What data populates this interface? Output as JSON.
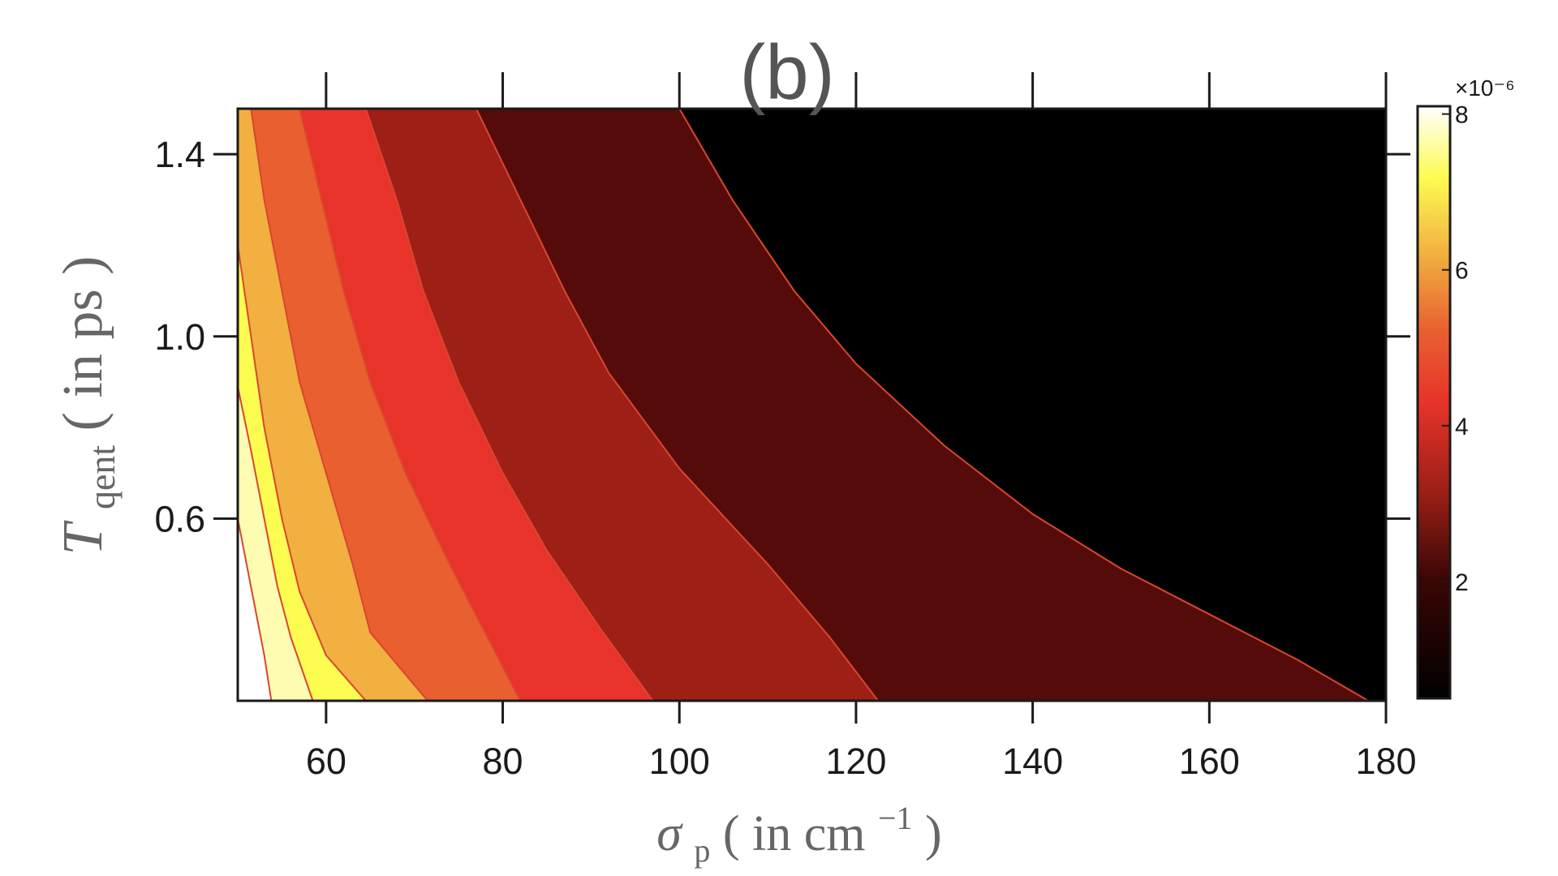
{
  "chart_data": {
    "type": "contour",
    "title": "(b)",
    "xlabel": {
      "symbol": "σ",
      "subscript": "p",
      "text": " ( in cm",
      "superscript": "−1",
      "close": " )"
    },
    "ylabel": {
      "symbol": "T",
      "subscript": "qent",
      "text": " ( in ps )"
    },
    "xlim": [
      50,
      180
    ],
    "ylim": [
      0.2,
      1.5
    ],
    "xticks": [
      60,
      80,
      100,
      120,
      140,
      160,
      180
    ],
    "xtick_labels": [
      "60",
      "80",
      "100",
      "120",
      "140",
      "160",
      "180"
    ],
    "yticks": [
      0.6,
      1.0,
      1.4
    ],
    "ytick_labels": [
      "0.6",
      "1.0",
      "1.4"
    ],
    "colorbar": {
      "range": [
        0.5,
        8.1
      ],
      "ticks": [
        2,
        4,
        6,
        8
      ],
      "tick_labels": [
        "2",
        "4",
        "6",
        "8"
      ],
      "exponent": "×10⁻⁶",
      "colormap": "hot"
    },
    "levels": [
      1,
      2,
      3,
      4,
      5,
      6,
      7
    ],
    "level_colors": [
      "#000000",
      "#550b09",
      "#9d1f16",
      "#e8332a",
      "#e95f30",
      "#f1b040",
      "#fdfc51",
      "#fefcb0"
    ],
    "contour_lines": [
      {
        "level": 1,
        "points": [
          [
            100,
            1.5
          ],
          [
            106,
            1.3
          ],
          [
            113,
            1.1
          ],
          [
            120,
            0.94
          ],
          [
            130,
            0.76
          ],
          [
            140,
            0.61
          ],
          [
            150,
            0.49
          ],
          [
            160,
            0.39
          ],
          [
            170,
            0.29
          ],
          [
            178,
            0.2
          ]
        ]
      },
      {
        "level": 2,
        "points": [
          [
            77,
            1.5
          ],
          [
            82,
            1.3
          ],
          [
            87,
            1.1
          ],
          [
            92,
            0.92
          ],
          [
            100,
            0.71
          ],
          [
            110,
            0.5
          ],
          [
            117,
            0.34
          ],
          [
            122.5,
            0.2
          ]
        ]
      },
      {
        "level": 3,
        "points": [
          [
            64.5,
            1.5
          ],
          [
            68,
            1.3
          ],
          [
            71,
            1.1
          ],
          [
            75,
            0.9
          ],
          [
            80,
            0.7
          ],
          [
            85,
            0.53
          ],
          [
            91,
            0.36
          ],
          [
            97,
            0.2
          ]
        ]
      },
      {
        "level": 4,
        "points": [
          [
            57,
            1.5
          ],
          [
            59.5,
            1.3
          ],
          [
            62,
            1.1
          ],
          [
            65,
            0.9
          ],
          [
            69,
            0.7
          ],
          [
            74,
            0.5
          ],
          [
            78,
            0.35
          ],
          [
            82,
            0.2
          ]
        ]
      },
      {
        "level": 5,
        "points": [
          [
            51.5,
            1.5
          ],
          [
            53,
            1.3
          ],
          [
            55,
            1.1
          ],
          [
            57,
            0.9
          ],
          [
            60,
            0.7
          ],
          [
            63,
            0.5
          ],
          [
            65,
            0.35
          ],
          [
            71.5,
            0.2
          ]
        ]
      },
      {
        "level": 6,
        "points": [
          [
            50,
            1.2
          ],
          [
            51.5,
            1.0
          ],
          [
            53,
            0.8
          ],
          [
            55,
            0.6
          ],
          [
            57,
            0.44
          ],
          [
            60,
            0.3
          ],
          [
            64.5,
            0.2
          ]
        ]
      },
      {
        "level": 7,
        "points": [
          [
            50,
            0.89
          ],
          [
            51.5,
            0.75
          ],
          [
            53,
            0.6
          ],
          [
            54.5,
            0.45
          ],
          [
            56,
            0.34
          ],
          [
            58.5,
            0.2
          ]
        ]
      },
      {
        "level": 7.8,
        "points": [
          [
            50,
            0.6
          ],
          [
            51,
            0.5
          ],
          [
            52,
            0.4
          ],
          [
            53,
            0.3
          ],
          [
            53.8,
            0.2
          ]
        ]
      }
    ]
  }
}
